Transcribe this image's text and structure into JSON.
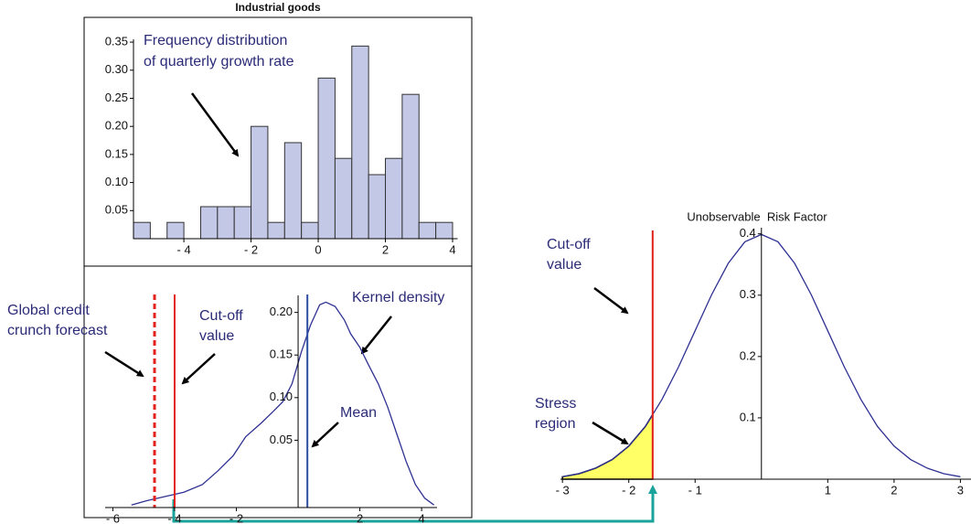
{
  "chart_data": [
    {
      "type": "histogram",
      "title": "Industrial goods",
      "bins": [
        -5.5,
        -5,
        -4.5,
        -4,
        -3.5,
        -3,
        -2.5,
        -2,
        -1.5,
        -1,
        -0.5,
        0,
        0.5,
        1,
        1.5,
        2,
        2.5,
        3,
        3.5,
        4
      ],
      "counts": [
        0.029,
        0,
        0.029,
        0,
        0.057,
        0.057,
        0.057,
        0.2,
        0.029,
        0.171,
        0.029,
        0.286,
        0.143,
        0.343,
        0.114,
        0.143,
        0.257,
        0.029,
        0.029
      ],
      "color": "#c3c8e6",
      "xlim": [
        -5.5,
        4.15
      ],
      "ylim": [
        0,
        0.355
      ],
      "xticks": [
        {
          "value": -4,
          "label": "- 4"
        },
        {
          "value": -2,
          "label": "- 2"
        },
        0,
        2,
        4
      ],
      "yticks": [
        0.05,
        {
          "value": 0.1,
          "label": "0.10"
        },
        0.15,
        {
          "value": 0.2,
          "label": "0.20"
        },
        0.25,
        {
          "value": 0.3,
          "label": "0.30"
        },
        0.35
      ],
      "axes_origin": [
        -5.5,
        0
      ],
      "annotations": [
        "Frequency distribution",
        "of quarterly growth rate"
      ]
    },
    {
      "type": "line",
      "x": [
        -5.4,
        -4.9,
        -4.3,
        -3.7,
        -3.1,
        -2.6,
        -2.1,
        -1.7,
        -1.2,
        -0.8,
        -0.5,
        -0.2,
        0.1,
        0.4,
        0.7,
        0.9,
        1.2,
        1.5,
        1.7,
        2.0,
        2.3,
        2.6,
        2.9,
        3.2,
        3.5,
        3.8,
        4.1,
        4.4
      ],
      "values": [
        -0.026,
        -0.021,
        -0.016,
        -0.011,
        -0.002,
        0.014,
        0.032,
        0.054,
        0.07,
        0.084,
        0.095,
        0.116,
        0.153,
        0.185,
        0.209,
        0.212,
        0.207,
        0.191,
        0.175,
        0.159,
        0.137,
        0.116,
        0.089,
        0.057,
        0.025,
        -0.002,
        -0.018,
        -0.026
      ],
      "color": "#2e3192",
      "xlim": [
        -6.25,
        4.5
      ],
      "ylim": [
        -0.029,
        0.22
      ],
      "xticks": [
        {
          "value": -6,
          "label": "- 6"
        },
        {
          "value": -4,
          "label": "- 4"
        },
        {
          "value": -2,
          "label": "- 2"
        },
        2,
        4
      ],
      "yticks": [
        0.05,
        {
          "value": 0.1,
          "label": "0.10"
        },
        0.15,
        {
          "value": 0.2,
          "label": "0.20"
        }
      ],
      "axes_origin": [
        0,
        -0.029
      ],
      "markers": [
        {
          "x": -4.65,
          "color": "#e3211c",
          "dashed": true
        },
        {
          "x": -4.0,
          "color": "#e3211c",
          "dashed": false
        },
        {
          "x": 0.3,
          "color": "#2b4ea2",
          "dashed": false
        }
      ],
      "annotations": [
        "Global credit",
        "crunch forecast",
        "Cut-off",
        "value",
        "Kernel density",
        "Mean"
      ]
    },
    {
      "type": "line",
      "x": [
        -3,
        -2.75,
        -2.5,
        -2.25,
        -2,
        -1.75,
        -1.5,
        -1.25,
        -1,
        -0.75,
        -0.5,
        -0.25,
        0,
        0.25,
        0.5,
        0.75,
        1,
        1.25,
        1.5,
        1.75,
        2,
        2.25,
        2.5,
        2.75,
        3
      ],
      "values": [
        0.004,
        0.009,
        0.018,
        0.032,
        0.054,
        0.086,
        0.13,
        0.183,
        0.242,
        0.301,
        0.352,
        0.387,
        0.399,
        0.387,
        0.352,
        0.301,
        0.242,
        0.183,
        0.13,
        0.086,
        0.054,
        0.032,
        0.018,
        0.009,
        0.004
      ],
      "color": "#2e3192",
      "xlim": [
        -3.03,
        3.16
      ],
      "ylim": [
        0,
        0.41
      ],
      "xticks": [
        {
          "value": -3,
          "label": "- 3"
        },
        {
          "value": -2,
          "label": "- 2"
        },
        {
          "value": -1,
          "label": "- 1"
        },
        1,
        2,
        3
      ],
      "yticks": [
        0.1,
        0.2,
        0.3,
        0.4
      ],
      "axes_origin": [
        0,
        0
      ],
      "x_label": "Unobservable  Risk Factor",
      "markers": [
        {
          "x": -1.64,
          "color": "#e3211c",
          "dashed": false,
          "shade_color": "#ffff66"
        }
      ],
      "annotations": [
        "Cut-off",
        "value",
        "Stress",
        "region"
      ]
    }
  ]
}
